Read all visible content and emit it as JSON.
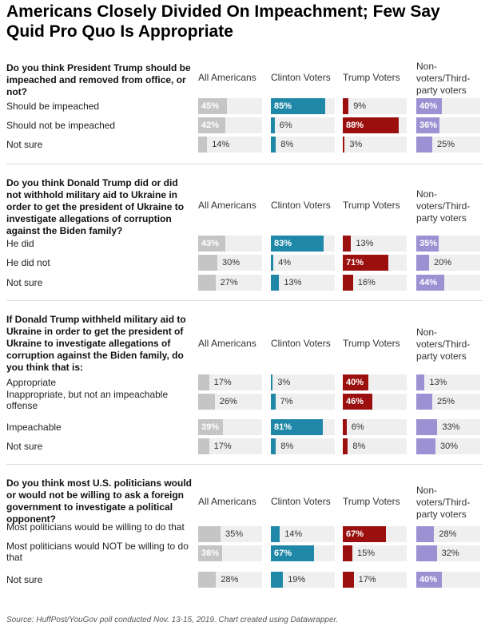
{
  "title": "Americans Closely Divided On Impeachment; Few Say Quid Pro Quo Is Appropriate",
  "columns": [
    "All Americans",
    "Clinton Voters",
    "Trump Voters",
    "Non-voters/Third-party voters"
  ],
  "colors": {
    "all": "#c5c5c5",
    "clinton": "#1f88a8",
    "trump": "#9b0f0f",
    "nonvoters": "#9b91d3",
    "track": "#efefef"
  },
  "source": "Source: HuffPost/YouGov poll conducted Nov. 13-15, 2019. Chart created using Datawrapper.",
  "chart_data": {
    "type": "bar",
    "value_unit": "%",
    "sections": [
      {
        "question": "Do you think President Trump should be impeached and removed from office, or not?",
        "rows": [
          {
            "label": "Should be impeached",
            "values": [
              45,
              85,
              9,
              40
            ]
          },
          {
            "label": "Should not be impeached",
            "values": [
              42,
              6,
              88,
              36
            ]
          },
          {
            "label": "Not sure",
            "values": [
              14,
              8,
              3,
              25
            ]
          }
        ]
      },
      {
        "question": "Do you think Donald Trump did or did not withhold military aid to Ukraine in order to get the president of Ukraine to investigate allegations of corruption against the Biden family?",
        "rows": [
          {
            "label": "He did",
            "values": [
              43,
              83,
              13,
              35
            ]
          },
          {
            "label": "He did not",
            "values": [
              30,
              4,
              71,
              20
            ]
          },
          {
            "label": "Not sure",
            "values": [
              27,
              13,
              16,
              44
            ]
          }
        ]
      },
      {
        "question": "If Donald Trump withheld military aid to Ukraine in order to get the president of Ukraine to investigate allegations of corruption against the Biden family, do you think that is:",
        "rows": [
          {
            "label": "Appropriate",
            "values": [
              17,
              3,
              40,
              13
            ]
          },
          {
            "label": "Inappropriate, but not an impeachable offense",
            "values": [
              26,
              7,
              46,
              25
            ]
          },
          {
            "label": "Impeachable",
            "values": [
              39,
              81,
              6,
              33
            ]
          },
          {
            "label": "Not sure",
            "values": [
              17,
              8,
              8,
              30
            ]
          }
        ]
      },
      {
        "question": "Do you think most U.S. politicians would or would not be willing to ask a foreign government to investigate a political opponent?",
        "rows": [
          {
            "label": "Most politicians would be willing to do that",
            "values": [
              35,
              14,
              67,
              28
            ]
          },
          {
            "label": "Most politicians would NOT be willing to do that",
            "values": [
              38,
              67,
              15,
              32
            ]
          },
          {
            "label": "Not sure",
            "values": [
              28,
              19,
              17,
              40
            ]
          }
        ]
      }
    ]
  }
}
